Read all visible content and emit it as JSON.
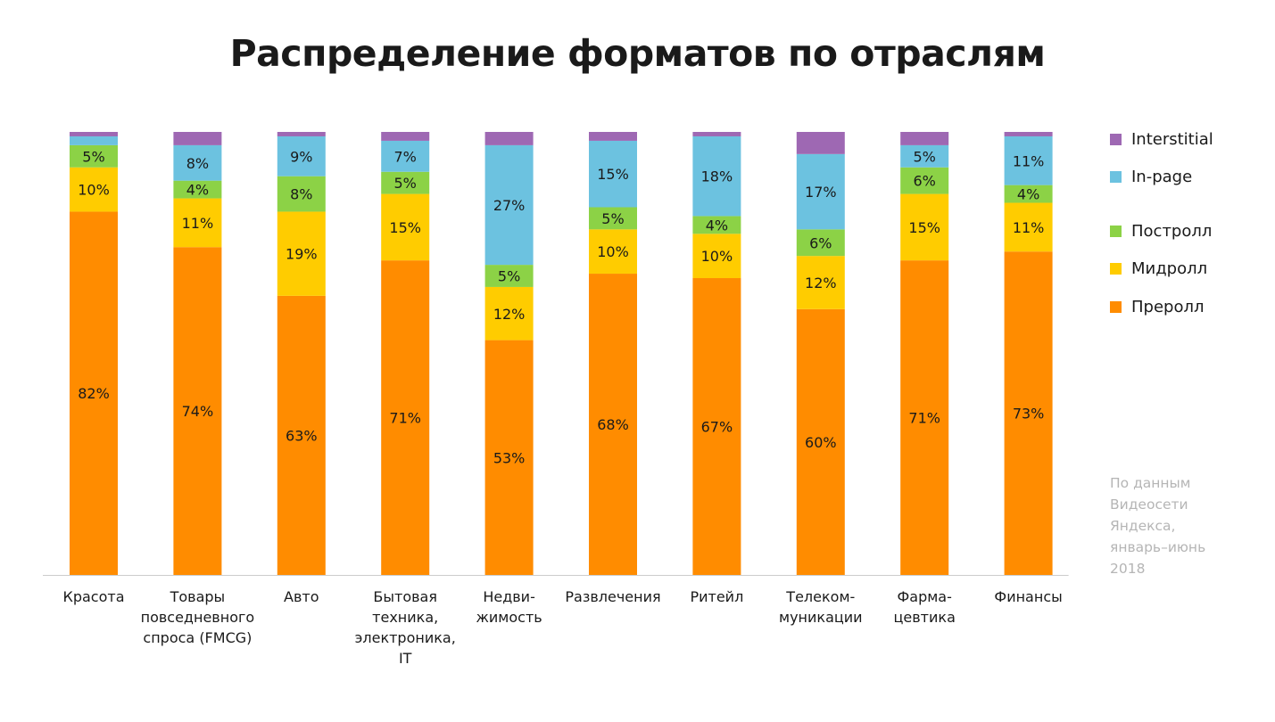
{
  "chart_data": {
    "type": "bar",
    "stacked": true,
    "normalized_percent": true,
    "title": "Распределение форматов по отраслям",
    "xlabel": "",
    "ylabel": "",
    "ylim": [
      0,
      100
    ],
    "grid": false,
    "legend_position": "right",
    "categories": [
      [
        "Красота"
      ],
      [
        "Товары",
        "повседневного",
        "спроса (FMCG)"
      ],
      [
        "Авто"
      ],
      [
        "Бытовая",
        "техника,",
        "электроника,",
        "IT"
      ],
      [
        "Недви-",
        "жимость"
      ],
      [
        "Развлечения"
      ],
      [
        "Ритейл"
      ],
      [
        "Телеком-",
        "муникации"
      ],
      [
        "Фарма-",
        "цевтика"
      ],
      [
        "Финансы"
      ]
    ],
    "series": [
      {
        "name": "Преролл",
        "color": "#ff8c00",
        "values": [
          82,
          74,
          63,
          71,
          53,
          68,
          67,
          60,
          71,
          73
        ]
      },
      {
        "name": "Мидролл",
        "color": "#ffcc00",
        "values": [
          10,
          11,
          19,
          15,
          12,
          10,
          10,
          12,
          15,
          11
        ]
      },
      {
        "name": "Постролл",
        "color": "#8cd246",
        "values": [
          5,
          4,
          8,
          5,
          5,
          5,
          4,
          6,
          6,
          4
        ]
      },
      {
        "name": "In-page",
        "color": "#6cc2e0",
        "values": [
          2,
          8,
          9,
          7,
          27,
          15,
          18,
          17,
          5,
          11
        ]
      },
      {
        "name": "Interstitial",
        "color": "#9e68b3",
        "values": [
          1,
          3,
          1,
          2,
          3,
          2,
          1,
          5,
          3,
          1
        ]
      }
    ],
    "value_labels": [
      [
        "82%",
        "10%",
        "5%",
        "",
        ""
      ],
      [
        "74%",
        "11%",
        "4%",
        "8%",
        ""
      ],
      [
        "63%",
        "19%",
        "8%",
        "9%",
        ""
      ],
      [
        "71%",
        "15%",
        "5%",
        "7%",
        ""
      ],
      [
        "53%",
        "12%",
        "5%",
        "27%",
        ""
      ],
      [
        "68%",
        "10%",
        "5%",
        "15%",
        ""
      ],
      [
        "67%",
        "10%",
        "4%",
        "18%",
        ""
      ],
      [
        "60%",
        "12%",
        "6%",
        "17%",
        ""
      ],
      [
        "71%",
        "15%",
        "6%",
        "5%",
        ""
      ],
      [
        "73%",
        "11%",
        "4%",
        "11%",
        ""
      ]
    ],
    "legend": [
      {
        "label": "Interstitial",
        "color": "#9e68b3"
      },
      {
        "label": "In-page",
        "color": "#6cc2e0"
      },
      {
        "label": "Постролл",
        "color": "#8cd246"
      },
      {
        "label": "Мидролл",
        "color": "#ffcc00"
      },
      {
        "label": "Преролл",
        "color": "#ff8c00"
      }
    ]
  },
  "source_note": [
    "По данным",
    "Видеосети",
    "Яндекса,",
    "январь–июнь",
    "2018"
  ],
  "colors": {
    "axis": "#cccccc",
    "text": "#1a1a1a",
    "note": "#b5b5b5"
  }
}
